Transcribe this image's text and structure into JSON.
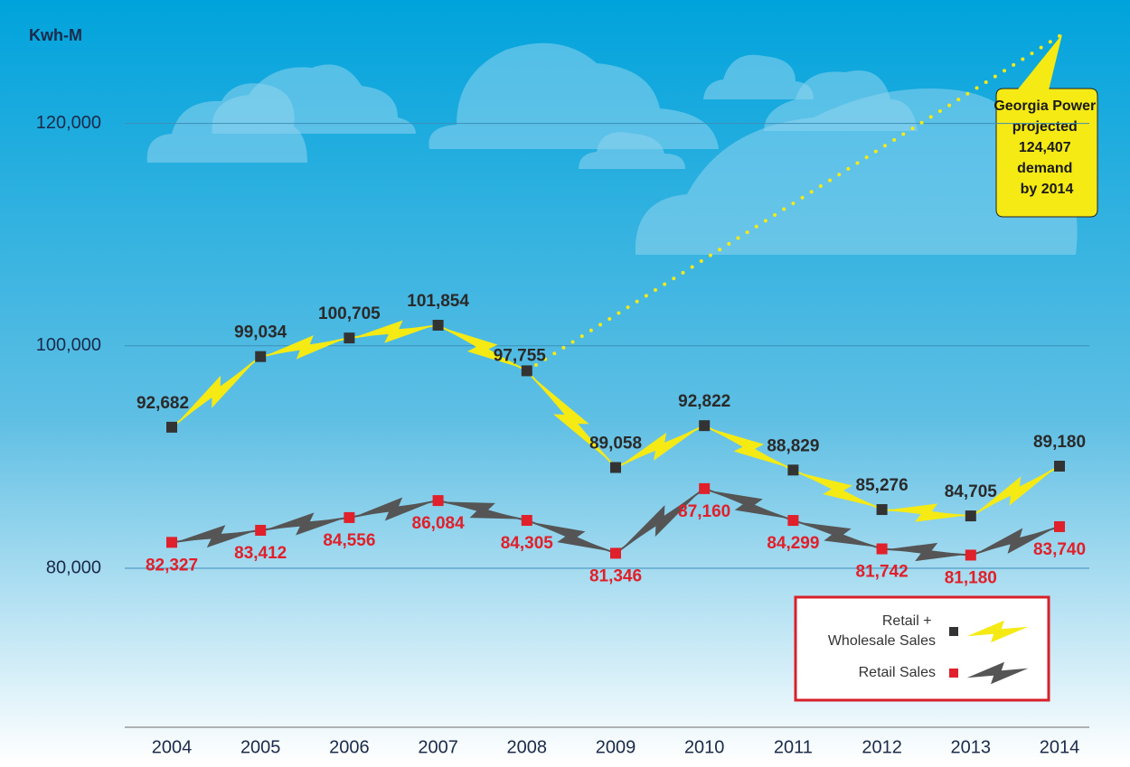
{
  "chart_data": {
    "type": "line",
    "y_axis_label": "Kwh-M",
    "categories": [
      "2004",
      "2005",
      "2006",
      "2007",
      "2008",
      "2009",
      "2010",
      "2011",
      "2012",
      "2013",
      "2014"
    ],
    "series": [
      {
        "name": "Retail + Wholesale Sales",
        "color": "#f5ea14",
        "marker_color": "#333333",
        "values": [
          92682,
          99034,
          100705,
          101854,
          97755,
          89058,
          92822,
          88829,
          85276,
          84705,
          89180
        ],
        "value_labels": [
          "92,682",
          "99,034",
          "100,705",
          "101,854",
          "97,755",
          "89,058",
          "92,822",
          "88,829",
          "85,276",
          "84,705",
          "89,180"
        ]
      },
      {
        "name": "Retail Sales",
        "color": "#555555",
        "marker_color": "#e0202a",
        "values": [
          82327,
          83412,
          84556,
          86084,
          84305,
          81346,
          87160,
          84299,
          81742,
          81180,
          83740
        ],
        "value_labels": [
          "82,327",
          "83,412",
          "84,556",
          "86,084",
          "84,305",
          "81,346",
          "87,160",
          "84,299",
          "81,742",
          "81,180",
          "83,740"
        ]
      }
    ],
    "annotation": "Georgia Power projected 124,407 demand by 2014",
    "ylim": [
      65700,
      131100
    ],
    "yticks": [
      {
        "value": 80000,
        "label": "80,000"
      },
      {
        "value": 100000,
        "label": "100,000"
      },
      {
        "value": 120000,
        "label": "120,000"
      }
    ],
    "grid": true
  }
}
